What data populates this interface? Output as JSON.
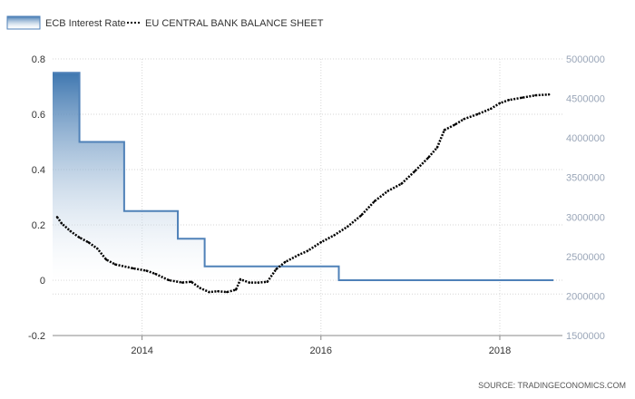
{
  "chart_data": {
    "type": "line",
    "legend": [
      {
        "label": "ECB Interest Rate",
        "style": "area"
      },
      {
        "label": "EU CENTRAL BANK BALANCE SHEET",
        "style": "dotted-line"
      }
    ],
    "legend_position": "top-left",
    "source": "SOURCE: TRADINGECONOMICS.COM",
    "x_axis": {
      "range": [
        2013.0,
        2018.7
      ],
      "ticks": [
        "2014",
        "2016",
        "2018"
      ]
    },
    "y_left": {
      "range": [
        -0.2,
        0.8
      ],
      "ticks": [
        "0.8",
        "0.6",
        "0.4",
        "0.2",
        "0",
        "-0.2"
      ]
    },
    "y_right": {
      "range": [
        1500000,
        5000000
      ],
      "ticks": [
        "5000000",
        "4500000",
        "4000000",
        "3500000",
        "3000000",
        "2500000",
        "2000000",
        "1500000"
      ]
    },
    "grid": true,
    "colors": {
      "rate_line": "#4f81b8",
      "rate_fill_top": "#3f77b0",
      "rate_fill_bottom": "#ffffff",
      "balance_line": "#000000",
      "grid": "#d6d6d6"
    },
    "series": [
      {
        "name": "ECB Interest Rate",
        "axis": "left",
        "step": true,
        "points": [
          [
            2013.0,
            0.75
          ],
          [
            2013.3,
            0.5
          ],
          [
            2013.8,
            0.25
          ],
          [
            2014.4,
            0.15
          ],
          [
            2014.7,
            0.05
          ],
          [
            2016.2,
            0.0
          ],
          [
            2018.6,
            0.0
          ]
        ]
      },
      {
        "name": "EU CENTRAL BANK BALANCE SHEET",
        "axis": "right",
        "points": [
          [
            2013.05,
            3000000
          ],
          [
            2013.1,
            2920000
          ],
          [
            2013.2,
            2820000
          ],
          [
            2013.3,
            2740000
          ],
          [
            2013.4,
            2680000
          ],
          [
            2013.5,
            2600000
          ],
          [
            2013.6,
            2460000
          ],
          [
            2013.7,
            2400000
          ],
          [
            2013.9,
            2350000
          ],
          [
            2014.05,
            2320000
          ],
          [
            2014.15,
            2280000
          ],
          [
            2014.3,
            2200000
          ],
          [
            2014.45,
            2170000
          ],
          [
            2014.55,
            2180000
          ],
          [
            2014.65,
            2100000
          ],
          [
            2014.75,
            2050000
          ],
          [
            2014.85,
            2060000
          ],
          [
            2014.95,
            2050000
          ],
          [
            2015.05,
            2080000
          ],
          [
            2015.1,
            2210000
          ],
          [
            2015.2,
            2170000
          ],
          [
            2015.3,
            2170000
          ],
          [
            2015.4,
            2180000
          ],
          [
            2015.5,
            2340000
          ],
          [
            2015.6,
            2430000
          ],
          [
            2015.75,
            2520000
          ],
          [
            2015.85,
            2570000
          ],
          [
            2016.0,
            2680000
          ],
          [
            2016.15,
            2770000
          ],
          [
            2016.3,
            2880000
          ],
          [
            2016.45,
            3020000
          ],
          [
            2016.6,
            3200000
          ],
          [
            2016.75,
            3330000
          ],
          [
            2016.9,
            3420000
          ],
          [
            2017.05,
            3580000
          ],
          [
            2017.2,
            3750000
          ],
          [
            2017.3,
            3880000
          ],
          [
            2017.38,
            4100000
          ],
          [
            2017.5,
            4170000
          ],
          [
            2017.6,
            4240000
          ],
          [
            2017.75,
            4300000
          ],
          [
            2017.9,
            4370000
          ],
          [
            2018.0,
            4440000
          ],
          [
            2018.1,
            4480000
          ],
          [
            2018.25,
            4510000
          ],
          [
            2018.4,
            4540000
          ],
          [
            2018.55,
            4550000
          ]
        ]
      }
    ]
  }
}
